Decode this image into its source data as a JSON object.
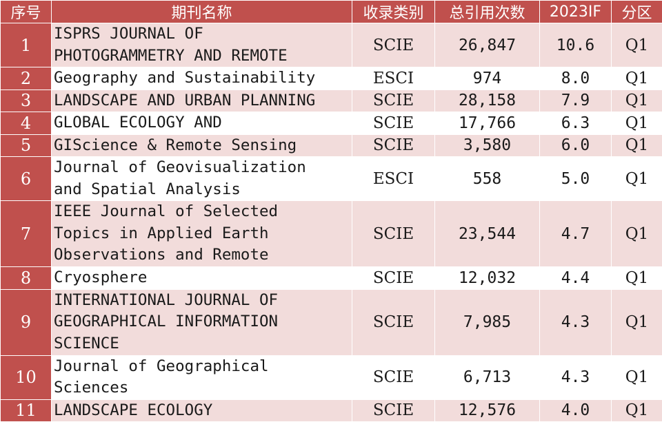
{
  "headers": {
    "no": "序号",
    "name": "期刊名称",
    "type": "收录类别",
    "citations": "总引用次数",
    "if": "2023IF",
    "quartile": "分区"
  },
  "rows": [
    {
      "no": "1",
      "name": "ISPRS JOURNAL OF\nPHOTOGRAMMETRY AND REMOTE",
      "type": "SCIE",
      "citations": "26,847",
      "if": "10.6",
      "quartile": "Q1"
    },
    {
      "no": "2",
      "name": "Geography and Sustainability",
      "type": "ESCI",
      "citations": "974",
      "if": "8.0",
      "quartile": "Q1"
    },
    {
      "no": "3",
      "name": "LANDSCAPE AND URBAN PLANNING",
      "type": "SCIE",
      "citations": "28,158",
      "if": "7.9",
      "quartile": "Q1"
    },
    {
      "no": "4",
      "name": "GLOBAL ECOLOGY AND",
      "type": "SCIE",
      "citations": "17,766",
      "if": "6.3",
      "quartile": "Q1"
    },
    {
      "no": "5",
      "name": "GIScience & Remote Sensing",
      "type": "SCIE",
      "citations": "3,580",
      "if": "6.0",
      "quartile": "Q1"
    },
    {
      "no": "6",
      "name": "Journal of Geovisualization\nand Spatial Analysis",
      "type": "ESCI",
      "citations": "558",
      "if": "5.0",
      "quartile": "Q1"
    },
    {
      "no": "7",
      "name": "IEEE Journal of Selected\nTopics in Applied Earth\nObservations and Remote",
      "type": "SCIE",
      "citations": "23,544",
      "if": "4.7",
      "quartile": "Q1"
    },
    {
      "no": "8",
      "name": "Cryosphere",
      "type": "SCIE",
      "citations": "12,032",
      "if": "4.4",
      "quartile": "Q1"
    },
    {
      "no": "9",
      "name": "INTERNATIONAL JOURNAL OF\nGEOGRAPHICAL INFORMATION\nSCIENCE",
      "type": "SCIE",
      "citations": "7,985",
      "if": "4.3",
      "quartile": "Q1"
    },
    {
      "no": "10",
      "name": "Journal of Geographical\nSciences",
      "type": "SCIE",
      "citations": "6,713",
      "if": "4.3",
      "quartile": "Q1"
    },
    {
      "no": "11",
      "name": "LANDSCAPE ECOLOGY",
      "type": "SCIE",
      "citations": "12,576",
      "if": "4.0",
      "quartile": "Q1"
    }
  ],
  "colors": {
    "header_bg": "#c0504d",
    "band_bg": "#f2dcdb",
    "plain_bg": "#ffffff"
  }
}
